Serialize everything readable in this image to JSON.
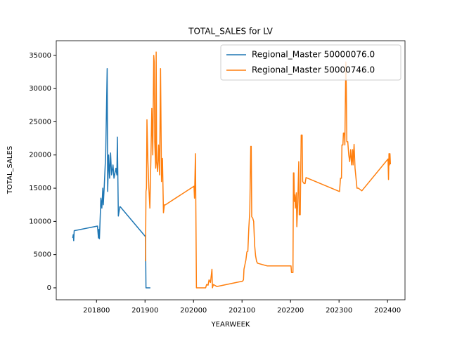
{
  "chart_data": {
    "type": "line",
    "title": "TOTAL_SALES for LV",
    "x_label": "YEARWEEK",
    "y_label": "TOTAL_SALES",
    "xlim": [
      201717,
      202436
    ],
    "xticks": [
      201800,
      201900,
      202000,
      202100,
      202200,
      202300,
      202400
    ],
    "ylim": [
      -1800,
      37200
    ],
    "yticks": [
      0,
      5000,
      10000,
      15000,
      20000,
      25000,
      30000,
      35000
    ],
    "legend": "upper right",
    "series": [
      {
        "name": "Regional_Master 50000076.0",
        "color": "#1f77b4",
        "x": [
          201751,
          201752,
          201753,
          201754,
          201802,
          201804,
          201805,
          201806,
          201809,
          201811,
          201813,
          201814,
          201816,
          201819,
          201822,
          201823,
          201825,
          201827,
          201829,
          201831,
          201834,
          201836,
          201840,
          201842,
          201843,
          201845,
          201848,
          201849,
          201901,
          201902,
          201911
        ],
        "values": [
          7500,
          8000,
          7100,
          8600,
          9300,
          7500,
          8800,
          7400,
          13500,
          12000,
          15000,
          12500,
          15300,
          20200,
          33000,
          14500,
          20000,
          16500,
          20300,
          17000,
          18500,
          16500,
          18000,
          17000,
          22700,
          10800,
          12200,
          12200,
          7700,
          0,
          0
        ]
      },
      {
        "name": "Regional_Master 50000746.0",
        "color": "#ff7f0e",
        "x": [
          201901,
          201902,
          201903,
          201904,
          201906,
          201908,
          201910,
          201912,
          201914,
          201916,
          201918,
          201919,
          201920,
          201922,
          201923,
          201924,
          201926,
          201928,
          201930,
          201932,
          201934,
          201936,
          201938,
          201940,
          201942,
          202001,
          202002,
          202004,
          202006,
          202025,
          202027,
          202030,
          202032,
          202035,
          202038,
          202039,
          202041,
          202048,
          202101,
          202103,
          202104,
          202106,
          202108,
          202110,
          202112,
          202114,
          202116,
          202118,
          202119,
          202120,
          202122,
          202124,
          202126,
          202128,
          202130,
          202132,
          202152,
          202201,
          202202,
          202205,
          202206,
          202207,
          202208,
          202209,
          202210,
          202212,
          202213,
          202215,
          202217,
          202218,
          202220,
          202222,
          202224,
          202225,
          202228,
          202230,
          202232,
          202301,
          202303,
          202305,
          202306,
          202308,
          202309,
          202311,
          202312,
          202314,
          202315,
          202316,
          202318,
          202320,
          202322,
          202324,
          202326,
          202328,
          202329,
          202331,
          202333,
          202335,
          202337,
          202340,
          202347,
          202401,
          202402,
          202403,
          202404,
          202405,
          202406
        ],
        "values": [
          4000,
          14500,
          15000,
          25300,
          19000,
          15000,
          12000,
          19000,
          27000,
          20000,
          35000,
          34000,
          22000,
          18000,
          35500,
          19000,
          17500,
          21500,
          17000,
          33000,
          16000,
          19500,
          11300,
          12500,
          12500,
          15300,
          13500,
          20200,
          0,
          0,
          500,
          400,
          1200,
          800,
          2800,
          0,
          500,
          200,
          1000,
          1200,
          2800,
          3500,
          4200,
          5400,
          5500,
          9000,
          11500,
          21300,
          21300,
          10700,
          10500,
          10000,
          6400,
          4800,
          4000,
          3700,
          3300,
          3300,
          2300,
          2300,
          17300,
          17300,
          13000,
          14000,
          12000,
          14300,
          9200,
          13000,
          19000,
          11000,
          11000,
          23000,
          23000,
          16000,
          15700,
          15700,
          16600,
          14500,
          16500,
          16500,
          21500,
          21500,
          23300,
          23300,
          21500,
          34000,
          30000,
          22000,
          22000,
          20000,
          19000,
          20800,
          18500,
          20800,
          18500,
          21600,
          18000,
          16500,
          15000,
          15000,
          14600,
          19400,
          16300,
          20200,
          18500,
          20200,
          18600
        ]
      }
    ]
  }
}
